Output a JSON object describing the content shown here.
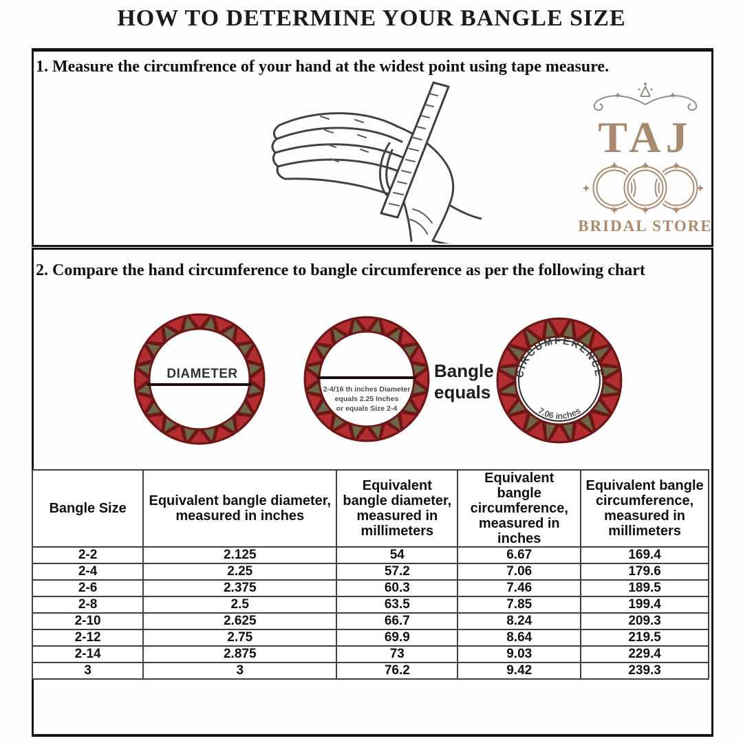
{
  "title": "HOW TO DETERMINE YOUR BANGLE SIZE",
  "steps": {
    "step1": "1. Measure the circumfrence of your hand at the widest point using tape measure.",
    "step2": "2. Compare the hand circumference to bangle circumference as per the following chart"
  },
  "logo": {
    "brand": "TAJ",
    "subtitle": "BRIDAL STORE",
    "color": "#a98a6e"
  },
  "diagram": {
    "diameter_label": "DIAMETER",
    "bangle_note_line1": "2-4/16 th inches Diameter",
    "bangle_note_line2": "equals 2.25 Inches",
    "bangle_note_line3": "or equals Size 2-4",
    "equals_label_line1": "Bangle",
    "equals_label_line2": "equals",
    "circumference_label": "CIRCUMFERENCE",
    "circumference_value": "7.06 inches",
    "ring_colors": {
      "maroon": "#6e1717",
      "red": "#b42e31",
      "olive": "#6b684a"
    }
  },
  "table": {
    "headers": [
      "Bangle Size",
      "Equivalent bangle diameter, measured in inches",
      "Equivalent bangle diameter, measured in millimeters",
      "Equivalent bangle circumference, measured in inches",
      "Equivalent bangle circumference, measured in millimeters"
    ],
    "rows": [
      [
        "2-2",
        "2.125",
        "54",
        "6.67",
        "169.4"
      ],
      [
        "2-4",
        "2.25",
        "57.2",
        "7.06",
        "179.6"
      ],
      [
        "2-6",
        "2.375",
        "60.3",
        "7.46",
        "189.5"
      ],
      [
        "2-8",
        "2.5",
        "63.5",
        "7.85",
        "199.4"
      ],
      [
        "2-10",
        "2.625",
        "66.7",
        "8.24",
        "209.3"
      ],
      [
        "2-12",
        "2.75",
        "69.9",
        "8.64",
        "219.5"
      ],
      [
        "2-14",
        "2.875",
        "73",
        "9.03",
        "229.4"
      ],
      [
        "3",
        "3",
        "76.2",
        "9.42",
        "239.3"
      ]
    ]
  }
}
